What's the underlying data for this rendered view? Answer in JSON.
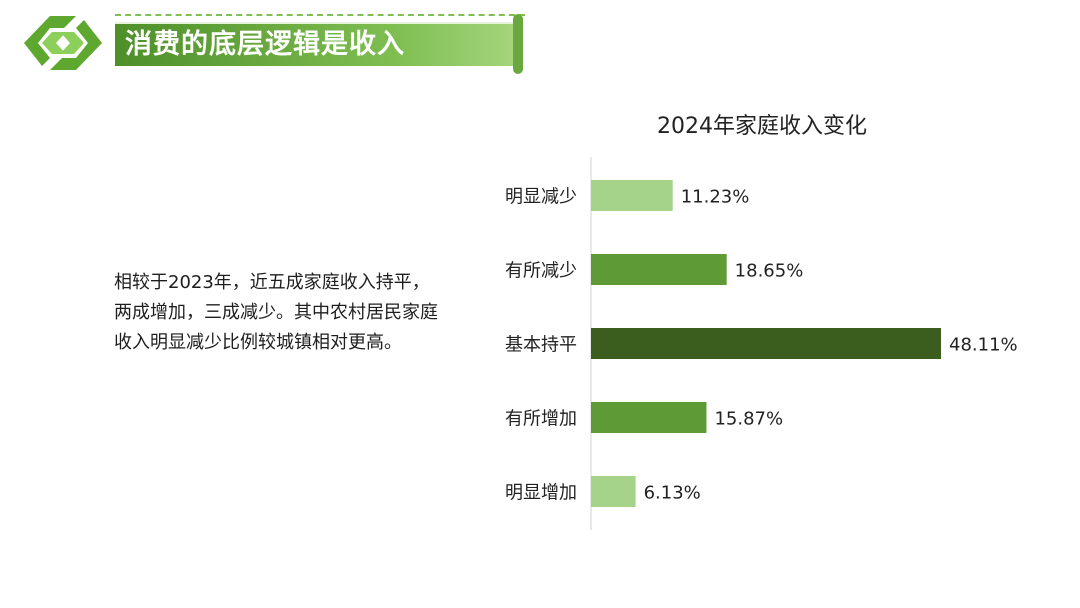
{
  "header": {
    "title": "消费的底层逻辑是收入"
  },
  "description": "相较于2023年，近五成家庭收入持平，两成增加，三成减少。其中农村居民家庭收入明显减少比例较城镇相对更高。",
  "colors": {
    "light_green": "#a6d38a",
    "mid_green": "#5e9a35",
    "dark_green": "#3b5e1e",
    "banner_green": "#6aa83e"
  },
  "chart_data": {
    "type": "bar",
    "orientation": "horizontal",
    "title": "2024年家庭收入变化",
    "categories": [
      "明显减少",
      "有所减少",
      "基本持平",
      "有所增加",
      "明显增加"
    ],
    "values": [
      11.23,
      18.65,
      48.11,
      15.87,
      6.13
    ],
    "value_labels": [
      "11.23%",
      "18.65%",
      "48.11%",
      "15.87%",
      "6.13%"
    ],
    "bar_colors": [
      "#a6d38a",
      "#5e9a35",
      "#3b5e1e",
      "#5e9a35",
      "#a6d38a"
    ],
    "unit": "%",
    "xlim": [
      0,
      48.11
    ],
    "grid": false,
    "legend": "none"
  }
}
